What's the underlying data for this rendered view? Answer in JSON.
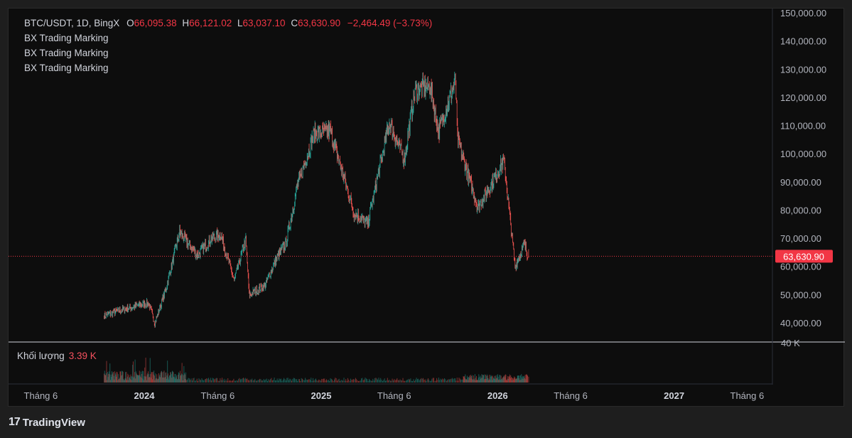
{
  "legend": {
    "symbol": "BTC/USDT, 1D, BingX",
    "open_label": "O",
    "open": "66,095.38",
    "high_label": "H",
    "high": "66,121.02",
    "low_label": "L",
    "low": "63,037.10",
    "close_label": "C",
    "close": "63,630.90",
    "change": "−2,464.49 (−3.73%)",
    "indicators": [
      "BX Trading Marking",
      "BX Trading Marking",
      "BX Trading Marking"
    ]
  },
  "volume": {
    "label": "Khối lượng",
    "value": "3.39 K",
    "axis_label": "40 K"
  },
  "last_price": {
    "label": "63,630.90",
    "value": 63630.9
  },
  "branding": {
    "logo_text": "TradingView",
    "mark": "17"
  },
  "colors": {
    "up": "#26a69a",
    "down": "#ef5350",
    "last_price_tag": "#f23645",
    "background": "#0d0d0d"
  },
  "chart_data": {
    "type": "candlestick",
    "title": "BTC/USDT, 1D, BingX",
    "ylim": [
      35000,
      150000
    ],
    "y_ticks": [
      "150,000.00",
      "140,000.00",
      "130,000.00",
      "120,000.00",
      "110,000.00",
      "100,000.00",
      "90,000.00",
      "80,000.00",
      "70,000.00",
      "60,000.00",
      "50,000.00",
      "40,000.00"
    ],
    "y_tick_values": [
      150000,
      140000,
      130000,
      120000,
      110000,
      100000,
      90000,
      80000,
      70000,
      60000,
      50000,
      40000
    ],
    "x_ticks": [
      "Tháng 6",
      "2024",
      "Tháng 6",
      "2025",
      "Tháng 6",
      "2026",
      "Tháng 6",
      "2027",
      "Tháng 6"
    ],
    "x_tick_dates": [
      "2023-06",
      "2024-01",
      "2024-06",
      "2025-01",
      "2025-06",
      "2026-01",
      "2026-06",
      "2027-01",
      "2027-06"
    ],
    "x_range": [
      "2023-04",
      "2027-09"
    ],
    "grid": false,
    "series_keypoints": [
      {
        "date": "2023-10-10",
        "price": 42500
      },
      {
        "date": "2023-11-15",
        "price": 44500
      },
      {
        "date": "2023-12-15",
        "price": 46000
      },
      {
        "date": "2024-01-10",
        "price": 47000
      },
      {
        "date": "2024-01-23",
        "price": 40000
      },
      {
        "date": "2024-02-15",
        "price": 52000
      },
      {
        "date": "2024-03-14",
        "price": 72000
      },
      {
        "date": "2024-04-20",
        "price": 64000
      },
      {
        "date": "2024-05-20",
        "price": 70000
      },
      {
        "date": "2024-06-07",
        "price": 71500
      },
      {
        "date": "2024-07-05",
        "price": 55000
      },
      {
        "date": "2024-07-29",
        "price": 69500
      },
      {
        "date": "2024-08-05",
        "price": 50000
      },
      {
        "date": "2024-09-06",
        "price": 53000
      },
      {
        "date": "2024-10-01",
        "price": 63000
      },
      {
        "date": "2024-10-20",
        "price": 68000
      },
      {
        "date": "2024-11-12",
        "price": 88000
      },
      {
        "date": "2024-12-17",
        "price": 107000
      },
      {
        "date": "2025-01-20",
        "price": 108000
      },
      {
        "date": "2025-03-10",
        "price": 79000
      },
      {
        "date": "2025-04-07",
        "price": 75000
      },
      {
        "date": "2025-05-22",
        "price": 111000
      },
      {
        "date": "2025-06-22",
        "price": 98000
      },
      {
        "date": "2025-07-14",
        "price": 122500
      },
      {
        "date": "2025-08-14",
        "price": 124000
      },
      {
        "date": "2025-09-01",
        "price": 108000
      },
      {
        "date": "2025-10-06",
        "price": 126000
      },
      {
        "date": "2025-10-10",
        "price": 105000
      },
      {
        "date": "2025-11-21",
        "price": 81000
      },
      {
        "date": "2025-12-15",
        "price": 88000
      },
      {
        "date": "2026-01-14",
        "price": 97500
      },
      {
        "date": "2026-02-06",
        "price": 60000
      },
      {
        "date": "2026-02-25",
        "price": 68000
      },
      {
        "date": "2026-03-05",
        "price": 63630.9
      }
    ]
  }
}
